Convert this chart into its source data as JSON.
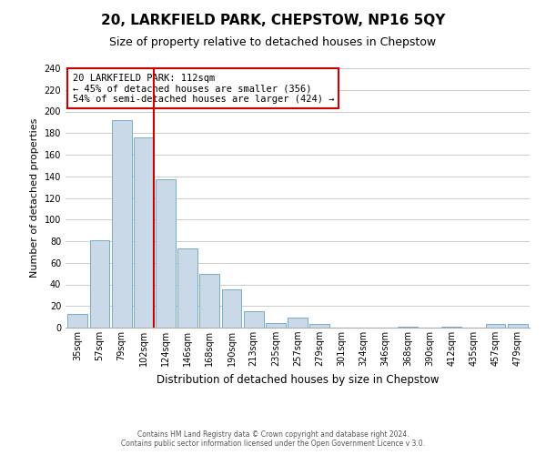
{
  "title": "20, LARKFIELD PARK, CHEPSTOW, NP16 5QY",
  "subtitle": "Size of property relative to detached houses in Chepstow",
  "xlabel": "Distribution of detached houses by size in Chepstow",
  "ylabel": "Number of detached properties",
  "bar_labels": [
    "35sqm",
    "57sqm",
    "79sqm",
    "102sqm",
    "124sqm",
    "146sqm",
    "168sqm",
    "190sqm",
    "213sqm",
    "235sqm",
    "257sqm",
    "279sqm",
    "301sqm",
    "324sqm",
    "346sqm",
    "368sqm",
    "390sqm",
    "412sqm",
    "435sqm",
    "457sqm",
    "479sqm"
  ],
  "bar_values": [
    13,
    81,
    192,
    176,
    137,
    73,
    50,
    35,
    15,
    4,
    9,
    3,
    0,
    0,
    0,
    1,
    0,
    1,
    0,
    3,
    3
  ],
  "bar_color": "#c9d9e8",
  "bar_edgecolor": "#7aaac8",
  "ylim": [
    0,
    240
  ],
  "yticks": [
    0,
    20,
    40,
    60,
    80,
    100,
    120,
    140,
    160,
    180,
    200,
    220,
    240
  ],
  "vline_color": "#cc0000",
  "annotation_title": "20 LARKFIELD PARK: 112sqm",
  "annotation_line1": "← 45% of detached houses are smaller (356)",
  "annotation_line2": "54% of semi-detached houses are larger (424) →",
  "annotation_box_color": "#cc0000",
  "footer_line1": "Contains HM Land Registry data © Crown copyright and database right 2024.",
  "footer_line2": "Contains public sector information licensed under the Open Government Licence v 3.0.",
  "background_color": "#ffffff",
  "grid_color": "#cccccc",
  "title_fontsize": 11,
  "subtitle_fontsize": 9,
  "ylabel_fontsize": 8,
  "xlabel_fontsize": 8.5,
  "tick_fontsize": 7,
  "annotation_fontsize": 7.5,
  "footer_fontsize": 5.5
}
